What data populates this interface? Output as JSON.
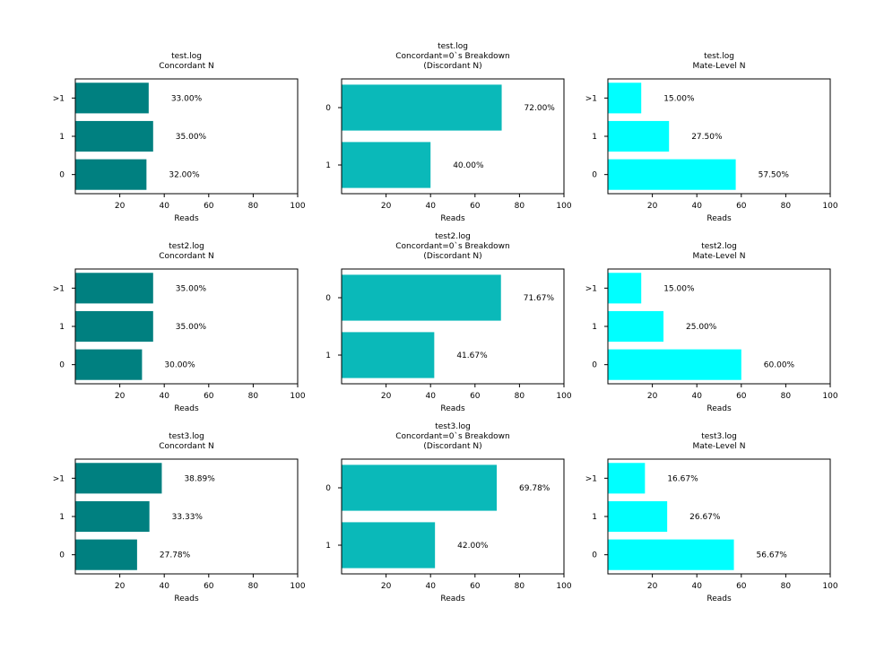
{
  "chart_data": [
    {
      "type": "bar",
      "orientation": "horizontal",
      "title": "test.log\nConcordant N",
      "categories": [
        "0",
        "1",
        ">1"
      ],
      "values": [
        32,
        35,
        33
      ],
      "labels": [
        "32.00%",
        "35.00%",
        "33.00%"
      ],
      "xlabel": "Reads",
      "xlim": [
        0,
        100
      ],
      "xticks": [
        "20",
        "40",
        "60",
        "80",
        "100"
      ],
      "color": "#008080"
    },
    {
      "type": "bar",
      "orientation": "horizontal",
      "title": "test.log\nConcordant=0`s Breakdown\n(Discordant N)",
      "categories": [
        "1",
        "0"
      ],
      "values": [
        40,
        72
      ],
      "labels": [
        "40.00%",
        "72.00%"
      ],
      "xlabel": "Reads",
      "xlim": [
        0,
        100
      ],
      "xticks": [
        "20",
        "40",
        "60",
        "80",
        "100"
      ],
      "color": "#0ab9b9"
    },
    {
      "type": "bar",
      "orientation": "horizontal",
      "title": "test.log\nMate-Level N",
      "categories": [
        "0",
        "1",
        ">1"
      ],
      "values": [
        57.5,
        27.5,
        15
      ],
      "labels": [
        "57.50%",
        "27.50%",
        "15.00%"
      ],
      "xlabel": "Reads",
      "xlim": [
        0,
        100
      ],
      "xticks": [
        "20",
        "40",
        "60",
        "80",
        "100"
      ],
      "color": "#00ffff"
    },
    {
      "type": "bar",
      "orientation": "horizontal",
      "title": "test2.log\nConcordant N",
      "categories": [
        "0",
        "1",
        ">1"
      ],
      "values": [
        30,
        35,
        35
      ],
      "labels": [
        "30.00%",
        "35.00%",
        "35.00%"
      ],
      "xlabel": "Reads",
      "xlim": [
        0,
        100
      ],
      "xticks": [
        "20",
        "40",
        "60",
        "80",
        "100"
      ],
      "color": "#008080"
    },
    {
      "type": "bar",
      "orientation": "horizontal",
      "title": "test2.log\nConcordant=0`s Breakdown\n(Discordant N)",
      "categories": [
        "1",
        "0"
      ],
      "values": [
        41.67,
        71.67
      ],
      "labels": [
        "41.67%",
        "71.67%"
      ],
      "xlabel": "Reads",
      "xlim": [
        0,
        100
      ],
      "xticks": [
        "20",
        "40",
        "60",
        "80",
        "100"
      ],
      "color": "#0ab9b9"
    },
    {
      "type": "bar",
      "orientation": "horizontal",
      "title": "test2.log\nMate-Level N",
      "categories": [
        "0",
        "1",
        ">1"
      ],
      "values": [
        60,
        25,
        15
      ],
      "labels": [
        "60.00%",
        "25.00%",
        "15.00%"
      ],
      "xlabel": "Reads",
      "xlim": [
        0,
        100
      ],
      "xticks": [
        "20",
        "40",
        "60",
        "80",
        "100"
      ],
      "color": "#00ffff"
    },
    {
      "type": "bar",
      "orientation": "horizontal",
      "title": "test3.log\nConcordant N",
      "categories": [
        "0",
        "1",
        ">1"
      ],
      "values": [
        27.78,
        33.33,
        38.89
      ],
      "labels": [
        "27.78%",
        "33.33%",
        "38.89%"
      ],
      "xlabel": "Reads",
      "xlim": [
        0,
        100
      ],
      "xticks": [
        "20",
        "40",
        "60",
        "80",
        "100"
      ],
      "color": "#008080"
    },
    {
      "type": "bar",
      "orientation": "horizontal",
      "title": "test3.log\nConcordant=0`s Breakdown\n(Discordant N)",
      "categories": [
        "1",
        "0"
      ],
      "values": [
        42,
        69.78
      ],
      "labels": [
        "42.00%",
        "69.78%"
      ],
      "xlabel": "Reads",
      "xlim": [
        0,
        100
      ],
      "xticks": [
        "20",
        "40",
        "60",
        "80",
        "100"
      ],
      "color": "#0ab9b9"
    },
    {
      "type": "bar",
      "orientation": "horizontal",
      "title": "test3.log\nMate-Level N",
      "categories": [
        "0",
        "1",
        ">1"
      ],
      "values": [
        56.67,
        26.67,
        16.67
      ],
      "labels": [
        "56.67%",
        "26.67%",
        "16.67%"
      ],
      "xlabel": "Reads",
      "xlim": [
        0,
        100
      ],
      "xticks": [
        "20",
        "40",
        "60",
        "80",
        "100"
      ],
      "color": "#00ffff"
    }
  ]
}
